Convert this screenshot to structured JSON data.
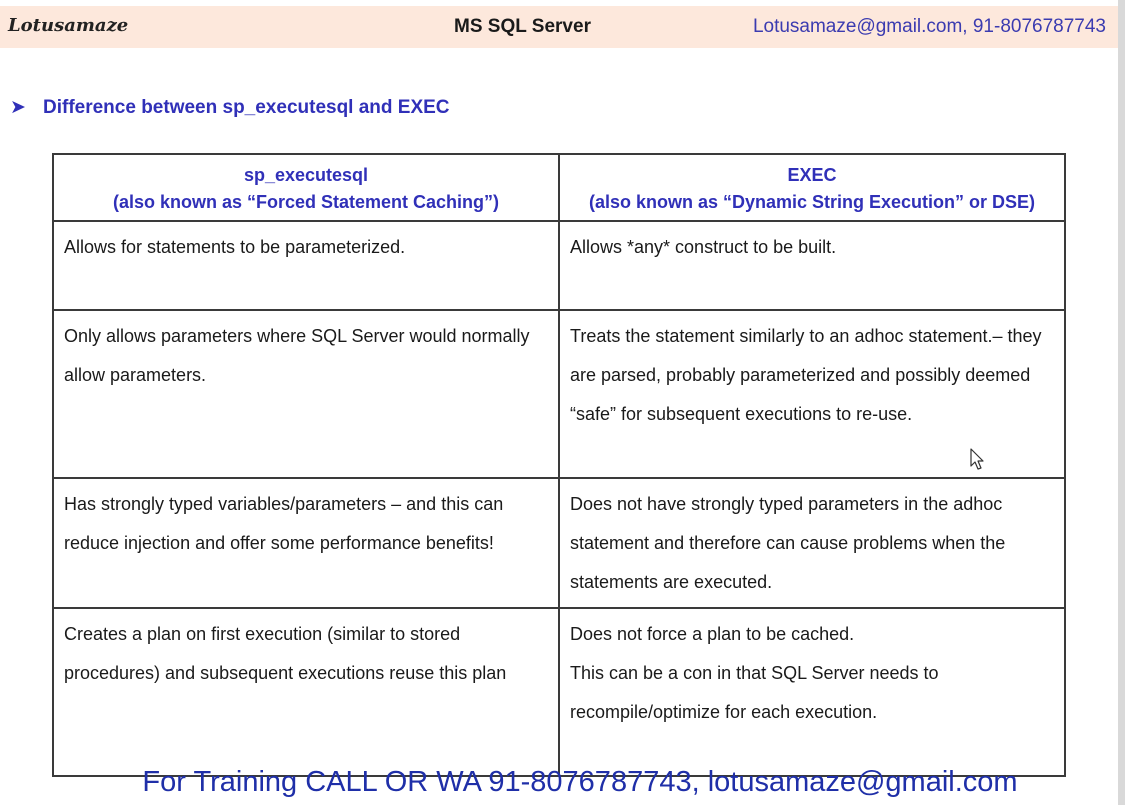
{
  "header": {
    "logo": "Lotusamaze",
    "title": "MS SQL Server",
    "contact": "Lotusamaze@gmail.com, 91-8076787743"
  },
  "heading": {
    "bullet_icon": "arrow-bullet-icon",
    "text": "Difference between sp_executesql and EXEC"
  },
  "table": {
    "headers": [
      {
        "title": "sp_executesql",
        "subtitle": "(also known as “Forced Statement Caching”)"
      },
      {
        "title": "EXEC",
        "subtitle": "(also known as “Dynamic String Execution” or DSE)"
      }
    ],
    "rows": [
      {
        "left": [
          "Allows for statements to be parameterized."
        ],
        "right": [
          "Allows *any* construct to be built."
        ]
      },
      {
        "left": [
          "Only allows parameters where SQL Server would normally allow parameters."
        ],
        "right": [
          "Treats the statement similarly to an adhoc statement.– they are parsed, probably parameterized and possibly deemed “safe” for subsequent executions to re-use."
        ]
      },
      {
        "left": [
          "Has strongly typed variables/parameters – and this can reduce injection and offer some performance benefits!"
        ],
        "right": [
          "Does not have strongly typed parameters in the adhoc statement and therefore can cause problems when the statements are executed."
        ]
      },
      {
        "left": [
          "Creates a plan on first execution (similar to stored procedures) and subsequent executions reuse this plan"
        ],
        "right": [
          "Does not force a plan to be cached.",
          "This can be a con in that SQL Server needs to recompile/optimize for each execution."
        ]
      }
    ]
  },
  "footer": "For Training CALL OR WA 91-8076787743, lotusamaze@gmail.com",
  "colors": {
    "header_bg": "#fde8dc",
    "accent_blue": "#3030b8",
    "footer_blue": "#1f2fa8"
  }
}
